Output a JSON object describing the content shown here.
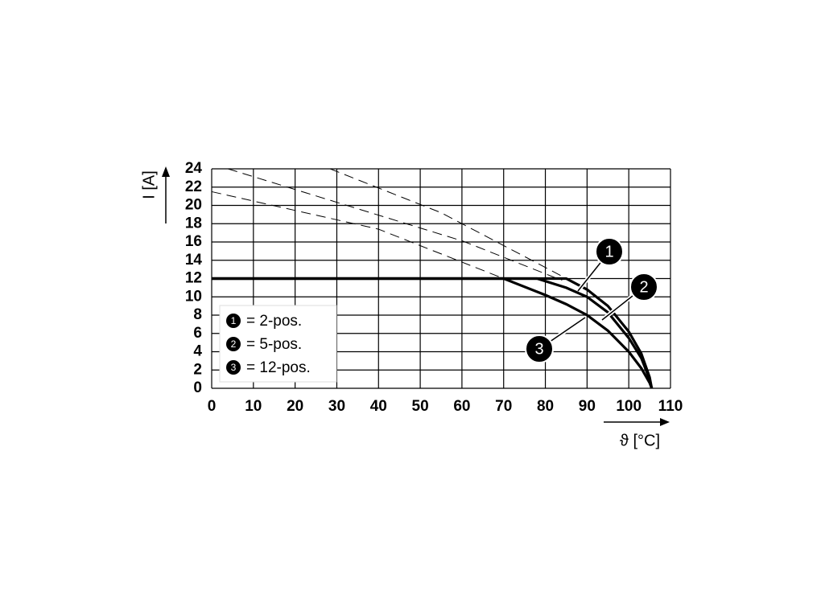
{
  "chart_data": {
    "type": "line",
    "x_label": "ϑ [°C]",
    "y_label": "I [A]",
    "xlim": [
      0,
      110
    ],
    "xticks": [
      0,
      10,
      20,
      30,
      40,
      50,
      60,
      70,
      80,
      90,
      100,
      110
    ],
    "ylim": [
      0,
      24
    ],
    "yticks": [
      0,
      2,
      4,
      6,
      8,
      10,
      12,
      14,
      16,
      18,
      20,
      22,
      24
    ],
    "grid": true,
    "legend": "lower left",
    "series": [
      {
        "name": "= 2-pos.",
        "callout": "1",
        "color": "#000000",
        "style": "solid",
        "x": [
          0,
          85,
          90,
          95,
          100,
          103,
          105,
          105.5
        ],
        "values": [
          12,
          12,
          10.8,
          9,
          6.2,
          3.8,
          1.2,
          0
        ]
      },
      {
        "name": "= 5-pos.",
        "callout": "2",
        "color": "#000000",
        "style": "solid",
        "x": [
          0,
          78,
          85,
          90,
          95,
          100,
          103,
          105,
          105.5
        ],
        "values": [
          12,
          12,
          11,
          10,
          8.3,
          5.5,
          3.3,
          1,
          0
        ]
      },
      {
        "name": "= 12-pos.",
        "callout": "3",
        "color": "#000000",
        "style": "solid",
        "x": [
          0,
          70,
          80,
          85,
          90,
          95,
          100,
          103,
          105,
          105.5
        ],
        "values": [
          12,
          12,
          10.2,
          9.2,
          8,
          6.3,
          4,
          2.2,
          0.6,
          0
        ]
      },
      {
        "color": "#000000",
        "style": "dashed",
        "x": [
          28.4,
          55,
          88
        ],
        "values": [
          24,
          19.2,
          11.3
        ]
      },
      {
        "color": "#000000",
        "style": "dashed",
        "x": [
          3.9,
          60.2,
          84
        ],
        "values": [
          24,
          16.1,
          11.8
        ]
      },
      {
        "color": "#000000",
        "style": "dashed",
        "x": [
          0,
          40,
          70
        ],
        "values": [
          21.5,
          17.4,
          12
        ]
      }
    ]
  }
}
